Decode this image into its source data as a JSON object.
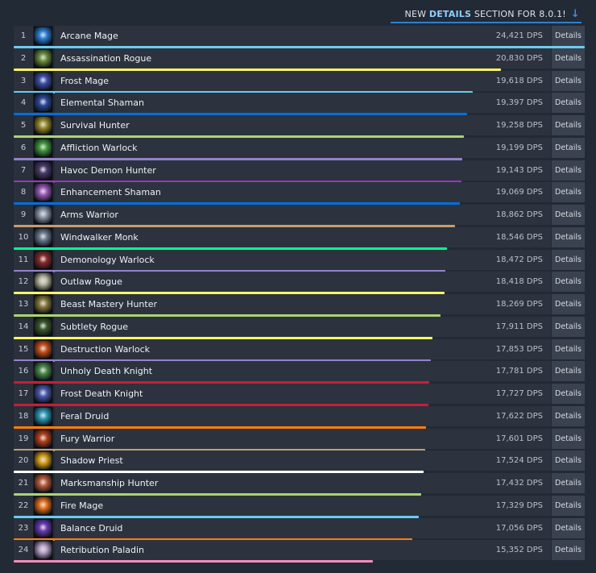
{
  "banner": {
    "prefix": "NEW ",
    "highlight": "DETAILS",
    "suffix": " SECTION FOR 8.0.1!",
    "arrow_icon": "arrow-down-icon"
  },
  "details_label": "Details",
  "max_dps": 24421,
  "rows": [
    {
      "rank": "1",
      "name": "Arcane Mage",
      "dps_text": "24,421 DPS",
      "dps": 24421,
      "color": "#69ccf0",
      "icon": "arcane-mage-icon",
      "icon_color": "#2a7fd8"
    },
    {
      "rank": "2",
      "name": "Assassination Rogue",
      "dps_text": "20,830 DPS",
      "dps": 20830,
      "color": "#fff569",
      "icon": "assassination-rogue-icon",
      "icon_color": "#6a8d3a"
    },
    {
      "rank": "3",
      "name": "Frost Mage",
      "dps_text": "19,618 DPS",
      "dps": 19618,
      "color": "#69ccf0",
      "icon": "frost-mage-icon",
      "icon_color": "#3c4fa8"
    },
    {
      "rank": "4",
      "name": "Elemental Shaman",
      "dps_text": "19,397 DPS",
      "dps": 19397,
      "color": "#0070de",
      "icon": "elemental-shaman-icon",
      "icon_color": "#2b4a9c"
    },
    {
      "rank": "5",
      "name": "Survival Hunter",
      "dps_text": "19,258 DPS",
      "dps": 19258,
      "color": "#abd473",
      "icon": "survival-hunter-icon",
      "icon_color": "#9a8a2a"
    },
    {
      "rank": "6",
      "name": "Affliction Warlock",
      "dps_text": "19,199 DPS",
      "dps": 19199,
      "color": "#9482c9",
      "icon": "affliction-warlock-icon",
      "icon_color": "#3f9a3a"
    },
    {
      "rank": "7",
      "name": "Havoc Demon Hunter",
      "dps_text": "19,143 DPS",
      "dps": 19143,
      "color": "#a330c9",
      "icon": "havoc-demon-hunter-icon",
      "icon_color": "#4a3a6a"
    },
    {
      "rank": "8",
      "name": "Enhancement Shaman",
      "dps_text": "19,069 DPS",
      "dps": 19069,
      "color": "#0070de",
      "icon": "enhancement-shaman-icon",
      "icon_color": "#9a5ab8"
    },
    {
      "rank": "9",
      "name": "Arms Warrior",
      "dps_text": "18,862 DPS",
      "dps": 18862,
      "color": "#c79c6e",
      "icon": "arms-warrior-icon",
      "icon_color": "#8a96a8"
    },
    {
      "rank": "10",
      "name": "Windwalker Monk",
      "dps_text": "18,546 DPS",
      "dps": 18546,
      "color": "#00ff96",
      "icon": "windwalker-monk-icon",
      "icon_color": "#6a7a90"
    },
    {
      "rank": "11",
      "name": "Demonology Warlock",
      "dps_text": "18,472 DPS",
      "dps": 18472,
      "color": "#9482c9",
      "icon": "demonology-warlock-icon",
      "icon_color": "#8a2a2a"
    },
    {
      "rank": "12",
      "name": "Outlaw Rogue",
      "dps_text": "18,418 DPS",
      "dps": 18418,
      "color": "#fff569",
      "icon": "outlaw-rogue-icon",
      "icon_color": "#b8b8a0"
    },
    {
      "rank": "13",
      "name": "Beast Mastery Hunter",
      "dps_text": "18,269 DPS",
      "dps": 18269,
      "color": "#abd473",
      "icon": "beast-mastery-hunter-icon",
      "icon_color": "#8a7a3a"
    },
    {
      "rank": "14",
      "name": "Subtlety Rogue",
      "dps_text": "17,911 DPS",
      "dps": 17911,
      "color": "#fff569",
      "icon": "subtlety-rogue-icon",
      "icon_color": "#3a5a2a"
    },
    {
      "rank": "15",
      "name": "Destruction Warlock",
      "dps_text": "17,853 DPS",
      "dps": 17853,
      "color": "#9482c9",
      "icon": "destruction-warlock-icon",
      "icon_color": "#c8501a"
    },
    {
      "rank": "16",
      "name": "Unholy Death Knight",
      "dps_text": "17,781 DPS",
      "dps": 17781,
      "color": "#c41f3b",
      "icon": "unholy-death-knight-icon",
      "icon_color": "#4a8a4a"
    },
    {
      "rank": "17",
      "name": "Frost Death Knight",
      "dps_text": "17,727 DPS",
      "dps": 17727,
      "color": "#c41f3b",
      "icon": "frost-death-knight-icon",
      "icon_color": "#4a5ab0"
    },
    {
      "rank": "18",
      "name": "Feral Druid",
      "dps_text": "17,622 DPS",
      "dps": 17622,
      "color": "#ff7d0a",
      "icon": "feral-druid-icon",
      "icon_color": "#2a9ab8"
    },
    {
      "rank": "19",
      "name": "Fury Warrior",
      "dps_text": "17,601 DPS",
      "dps": 17601,
      "color": "#c79c6e",
      "icon": "fury-warrior-icon",
      "icon_color": "#b8401a"
    },
    {
      "rank": "20",
      "name": "Shadow Priest",
      "dps_text": "17,524 DPS",
      "dps": 17524,
      "color": "#ffffff",
      "icon": "shadow-priest-icon",
      "icon_color": "#d8a018"
    },
    {
      "rank": "21",
      "name": "Marksmanship Hunter",
      "dps_text": "17,432 DPS",
      "dps": 17432,
      "color": "#abd473",
      "icon": "marksmanship-hunter-icon",
      "icon_color": "#b85a3a"
    },
    {
      "rank": "22",
      "name": "Fire Mage",
      "dps_text": "17,329 DPS",
      "dps": 17329,
      "color": "#69ccf0",
      "icon": "fire-mage-icon",
      "icon_color": "#e8701a"
    },
    {
      "rank": "23",
      "name": "Balance Druid",
      "dps_text": "17,056 DPS",
      "dps": 17056,
      "color": "#ff7d0a",
      "icon": "balance-druid-icon",
      "icon_color": "#6a3ab8"
    },
    {
      "rank": "24",
      "name": "Retribution Paladin",
      "dps_text": "15,352 DPS",
      "dps": 15352,
      "color": "#f58cba",
      "icon": "retribution-paladin-icon",
      "icon_color": "#b8a0c8"
    }
  ]
}
